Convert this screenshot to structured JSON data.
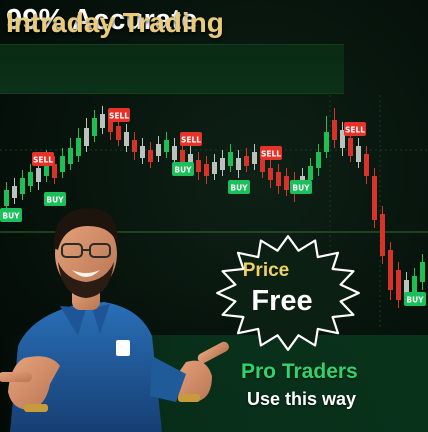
{
  "headline": {
    "line1": "99% Accurate",
    "line2": "Intraday Trading"
  },
  "badge": {
    "price_label": "Price",
    "free_label": "Free"
  },
  "footer": {
    "pro_label": "Pro Traders",
    "use_label": "Use this way"
  },
  "chart_signals": {
    "sell": [
      "SELL",
      "SELL",
      "SELL",
      "SELL"
    ],
    "buy": [
      "BUY",
      "BUY",
      "BUY",
      "BUY",
      "BUY",
      "BUY",
      "BUY"
    ]
  },
  "colors": {
    "background": "#050d08",
    "headline_primary": "#ffffff",
    "headline_accent": "#e9cb7a",
    "price_text": "#f0d168",
    "pro_text": "#33d16c",
    "bull_candle": "#1fbf55",
    "bear_candle": "#d8332b",
    "neutral_candle": "#b9c2bc",
    "sell_tag": "#e5332a",
    "buy_tag": "#1dbf5c"
  },
  "icons": {
    "burst_badge": "starburst-badge",
    "person": "presenter-photo"
  }
}
